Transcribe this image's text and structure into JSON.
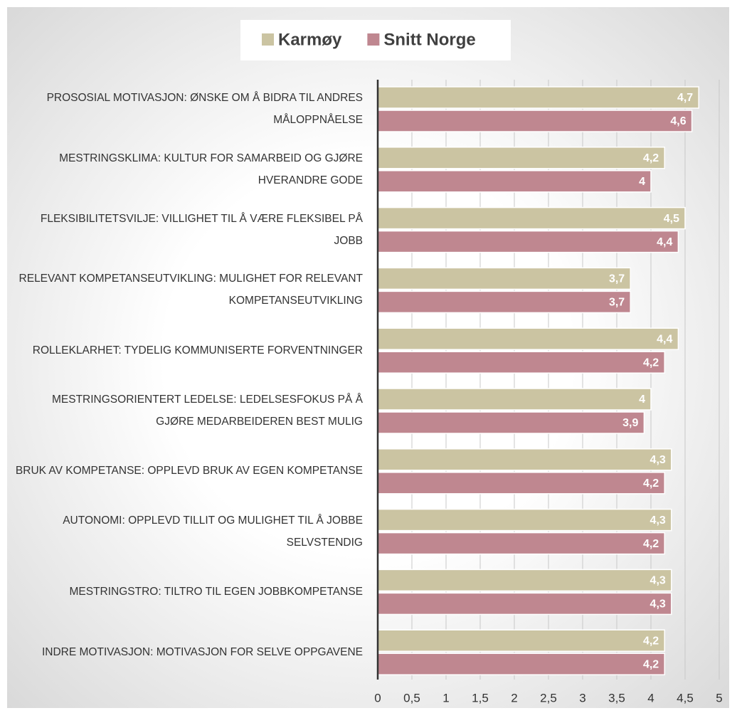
{
  "chart_data": {
    "type": "barh",
    "categories": [
      "PROSOSIAL MOTIVASJON: ØNSKE OM Å BIDRA TIL ANDRES MÅLOPPNÅELSE",
      "MESTRINGSKLIMA: KULTUR FOR SAMARBEID OG GJØRE HVERANDRE GODE",
      "FLEKSIBILITETSVILJE: VILLIGHET TIL Å VÆRE FLEKSIBEL PÅ JOBB",
      "RELEVANT KOMPETANSEUTVIKLING: MULIGHET FOR RELEVANT KOMPETANSEUTVIKLING",
      "ROLLEKLARHET: TYDELIG KOMMUNISERTE FORVENTNINGER",
      "MESTRINGSORIENTERT LEDELSE: LEDELSESFOKUS PÅ Å GJØRE MEDARBEIDEREN BEST MULIG",
      "BRUK AV KOMPETANSE: OPPLEVD BRUK AV EGEN KOMPETANSE",
      "AUTONOMI: OPPLEVD TILLIT OG MULIGHET TIL Å JOBBE SELVSTENDIG",
      "MESTRINGSTRO: TILTRO TIL EGEN JOBBKOMPETANSE",
      "INDRE MOTIVASJON: MOTIVASJON FOR SELVE OPPGAVENE"
    ],
    "series": [
      {
        "name": "Karmøy",
        "color": "#cbc4a2",
        "values": [
          4.7,
          4.2,
          4.5,
          3.7,
          4.4,
          4,
          4.3,
          4.3,
          4.3,
          4.2
        ],
        "value_labels": [
          "4,7",
          "4,2",
          "4,5",
          "3,7",
          "4,4",
          "4",
          "4,3",
          "4,3",
          "4,3",
          "4,2"
        ]
      },
      {
        "name": "Snitt Norge",
        "color": "#bf8790",
        "values": [
          4.6,
          4,
          4.4,
          3.7,
          4.2,
          3.9,
          4.2,
          4.2,
          4.3,
          4.2
        ],
        "value_labels": [
          "4,6",
          "4",
          "4,4",
          "3,7",
          "4,2",
          "3,9",
          "4,2",
          "4,2",
          "4,3",
          "4,2"
        ]
      }
    ],
    "xlim": [
      0,
      5
    ],
    "xticks": [
      0,
      {
        "value": 0.5,
        "label": "0,5"
      },
      1,
      {
        "value": 1.5,
        "label": "1,5"
      },
      2,
      {
        "value": 2.5,
        "label": "2,5"
      },
      3,
      {
        "value": 3.5,
        "label": "3,5"
      },
      4,
      {
        "value": 4.5,
        "label": "4,5"
      },
      5
    ],
    "grid": true,
    "legend": "top"
  }
}
